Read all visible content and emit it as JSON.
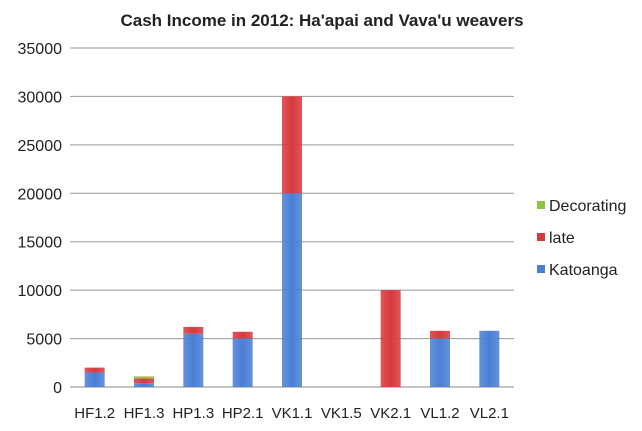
{
  "chart_data": {
    "type": "bar",
    "stacked": true,
    "title": "Cash Income in 2012: Ha'apai and Vava'u weavers",
    "xlabel": "",
    "ylabel": "",
    "ylim": [
      0,
      35000
    ],
    "yticks": [
      0,
      5000,
      10000,
      15000,
      20000,
      25000,
      30000,
      35000
    ],
    "grid": true,
    "legend_position": "right",
    "categories": [
      "HF1.2",
      "HF1.3",
      "HP1.3",
      "HP2.1",
      "VK1.1",
      "VK1.5",
      "VK2.1",
      "VL1.2",
      "VL2.1"
    ],
    "series": [
      {
        "name": "Katoanga",
        "color": "#4a7fd4",
        "values": [
          1500,
          400,
          5500,
          5000,
          20000,
          0,
          0,
          5000,
          5800
        ]
      },
      {
        "name": "late",
        "color": "#d8393d",
        "values": [
          500,
          500,
          700,
          700,
          10000,
          0,
          10000,
          800,
          0
        ]
      },
      {
        "name": "Decorating",
        "color": "#8cc63f",
        "values": [
          0,
          200,
          0,
          0,
          0,
          0,
          0,
          0,
          0
        ]
      }
    ]
  }
}
